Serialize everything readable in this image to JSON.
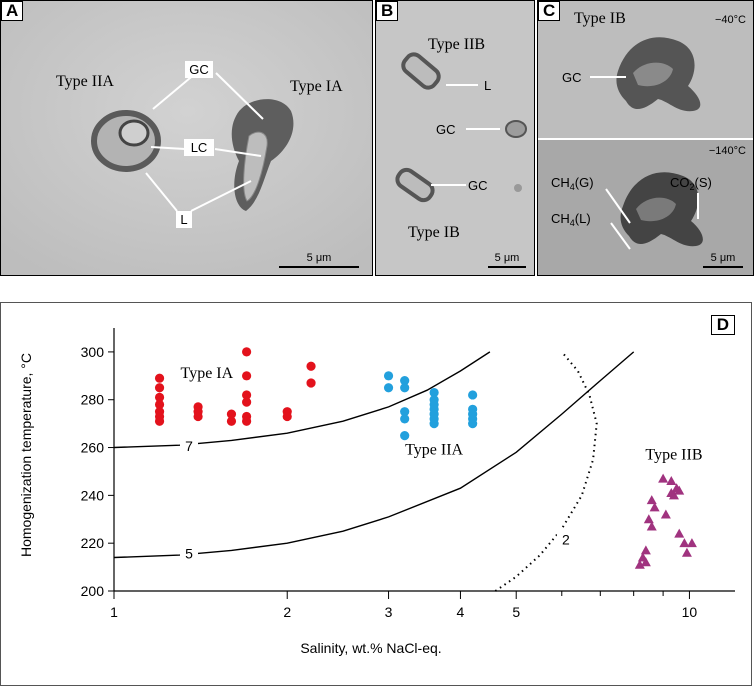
{
  "panels": {
    "a": {
      "label": "A",
      "type_left": "Type IIA",
      "type_right": "Type IA",
      "gc": "GC",
      "lc": "LC",
      "l": "L",
      "scale": "5 μm"
    },
    "b": {
      "label": "B",
      "type_top": "Type IIB",
      "type_bottom": "Type IB",
      "l": "L",
      "gc1": "GC",
      "gc2": "GC",
      "scale": "5 μm"
    },
    "c": {
      "label": "C",
      "type": "Type IB",
      "temp_top": "−40°C",
      "gc": "GC",
      "temp_bottom": "−140°C",
      "ch4g": "CH4(G)",
      "ch4l": "CH4(L)",
      "co2s": "CO2(S)",
      "scale": "5 μm"
    }
  },
  "chart_data": {
    "type": "scatter",
    "panel_label": "D",
    "xlabel": "Salinity, wt.% NaCl-eq.",
    "ylabel": "Homogenization temperature, °C",
    "xscale": "log",
    "xlim": [
      1,
      12
    ],
    "ylim": [
      200,
      310
    ],
    "xticks": [
      1,
      2,
      3,
      4,
      5,
      10
    ],
    "xtick_labels": [
      "1",
      "2",
      "3",
      "4",
      "5",
      "10"
    ],
    "xminor": [
      6,
      7,
      8,
      9
    ],
    "yticks": [
      200,
      220,
      240,
      260,
      280,
      300
    ],
    "series": [
      {
        "name": "Type IA",
        "marker": "circle",
        "color": "#e3121c",
        "label_pos": [
          1.45,
          289
        ],
        "points": [
          [
            1.2,
            289
          ],
          [
            1.2,
            285
          ],
          [
            1.2,
            281
          ],
          [
            1.2,
            278
          ],
          [
            1.2,
            275
          ],
          [
            1.2,
            273
          ],
          [
            1.2,
            271
          ],
          [
            1.4,
            277
          ],
          [
            1.4,
            275
          ],
          [
            1.4,
            273
          ],
          [
            1.6,
            274
          ],
          [
            1.6,
            271
          ],
          [
            1.7,
            300
          ],
          [
            1.7,
            290
          ],
          [
            1.7,
            282
          ],
          [
            1.7,
            279
          ],
          [
            1.7,
            273
          ],
          [
            1.7,
            271
          ],
          [
            2.0,
            275
          ],
          [
            2.0,
            273
          ],
          [
            2.2,
            294
          ],
          [
            2.2,
            287
          ]
        ]
      },
      {
        "name": "Type IIA",
        "marker": "circle",
        "color": "#22a0dd",
        "label_pos": [
          3.6,
          257
        ],
        "points": [
          [
            3.0,
            290
          ],
          [
            3.0,
            285
          ],
          [
            3.2,
            288
          ],
          [
            3.2,
            285
          ],
          [
            3.2,
            275
          ],
          [
            3.2,
            272
          ],
          [
            3.2,
            265
          ],
          [
            3.6,
            283
          ],
          [
            3.6,
            280
          ],
          [
            3.6,
            278
          ],
          [
            3.6,
            276
          ],
          [
            3.6,
            274
          ],
          [
            3.6,
            272
          ],
          [
            3.6,
            270
          ],
          [
            4.2,
            282
          ],
          [
            4.2,
            276
          ],
          [
            4.2,
            274
          ],
          [
            4.2,
            272
          ],
          [
            4.2,
            270
          ]
        ]
      },
      {
        "name": "Type IIB",
        "marker": "triangle",
        "color": "#a0337f",
        "label_pos": [
          9.4,
          255
        ],
        "points": [
          [
            9.0,
            247
          ],
          [
            9.3,
            246
          ],
          [
            9.3,
            241
          ],
          [
            9.5,
            243
          ],
          [
            9.4,
            240
          ],
          [
            9.6,
            242
          ],
          [
            8.6,
            238
          ],
          [
            8.7,
            235
          ],
          [
            8.5,
            230
          ],
          [
            8.6,
            227
          ],
          [
            9.1,
            232
          ],
          [
            9.6,
            224
          ],
          [
            9.8,
            220
          ],
          [
            10.1,
            220
          ],
          [
            9.9,
            216
          ],
          [
            8.4,
            217
          ],
          [
            8.3,
            214
          ],
          [
            8.2,
            211
          ],
          [
            8.4,
            212
          ]
        ]
      }
    ],
    "curves": [
      {
        "label": "7",
        "style": "solid",
        "label_at": [
          1.35,
          261
        ],
        "points": [
          [
            1,
            260
          ],
          [
            1.3,
            261
          ],
          [
            1.6,
            263
          ],
          [
            2.0,
            266
          ],
          [
            2.5,
            271
          ],
          [
            3.0,
            277
          ],
          [
            3.5,
            284
          ],
          [
            4.0,
            292
          ],
          [
            4.5,
            300
          ]
        ]
      },
      {
        "label": "5",
        "style": "solid",
        "label_at": [
          1.35,
          216
        ],
        "points": [
          [
            1,
            214
          ],
          [
            1.3,
            215
          ],
          [
            1.6,
            217
          ],
          [
            2.0,
            220
          ],
          [
            2.5,
            225
          ],
          [
            3.0,
            231
          ],
          [
            4.0,
            243
          ],
          [
            5.0,
            258
          ],
          [
            6.0,
            274
          ],
          [
            7.0,
            288
          ],
          [
            8.0,
            300
          ]
        ]
      },
      {
        "label": "2",
        "style": "dotted",
        "label_at": [
          6.1,
          222
        ],
        "points": [
          [
            4.6,
            200
          ],
          [
            5.0,
            206
          ],
          [
            5.5,
            215
          ],
          [
            6.0,
            226
          ],
          [
            6.5,
            240
          ],
          [
            6.8,
            255
          ],
          [
            6.9,
            270
          ],
          [
            6.7,
            282
          ],
          [
            6.4,
            292
          ],
          [
            6.0,
            300
          ]
        ]
      }
    ]
  }
}
